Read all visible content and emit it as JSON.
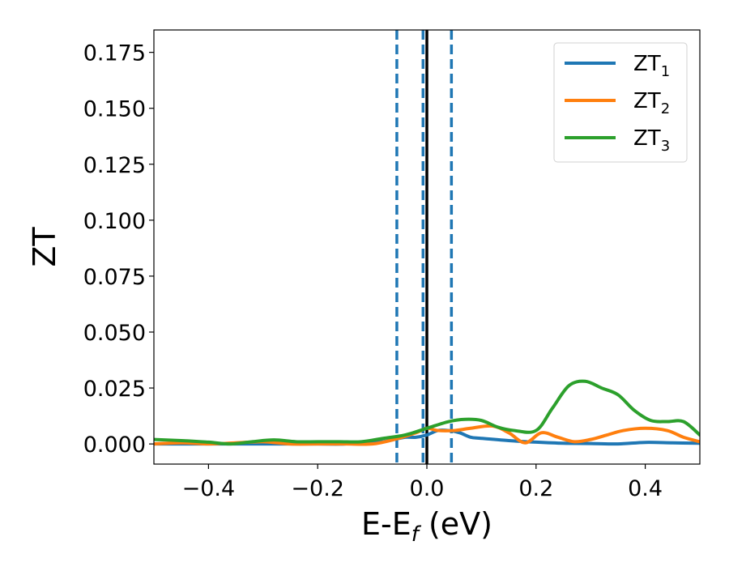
{
  "chart_data": {
    "type": "line",
    "title": "",
    "xlabel_main": "E-E",
    "xlabel_sub": "f",
    "xlabel_tail": " (eV)",
    "ylabel": "ZT",
    "xlim": [
      -0.5,
      0.5
    ],
    "ylim": [
      -0.009,
      0.185
    ],
    "xticks": [
      {
        "value": -0.4,
        "label": "−0.4"
      },
      {
        "value": -0.2,
        "label": "−0.2"
      },
      {
        "value": 0.0,
        "label": "0.0"
      },
      {
        "value": 0.2,
        "label": "0.2"
      },
      {
        "value": 0.4,
        "label": "0.4"
      }
    ],
    "yticks": [
      {
        "value": 0.0,
        "label": "0.000"
      },
      {
        "value": 0.025,
        "label": "0.025"
      },
      {
        "value": 0.05,
        "label": "0.050"
      },
      {
        "value": 0.075,
        "label": "0.075"
      },
      {
        "value": 0.1,
        "label": "0.100"
      },
      {
        "value": 0.125,
        "label": "0.125"
      },
      {
        "value": 0.15,
        "label": "0.150"
      },
      {
        "value": 0.175,
        "label": "0.175"
      }
    ],
    "grid": false,
    "legend_position": "top-right",
    "vlines": [
      {
        "x": -0.055,
        "style": "dashed",
        "color": "#1f77b4"
      },
      {
        "x": -0.007,
        "style": "dashed",
        "color": "#1f77b4"
      },
      {
        "x": 0.045,
        "style": "dashed",
        "color": "#1f77b4"
      },
      {
        "x": 0.0,
        "style": "solid",
        "color": "#000000"
      }
    ],
    "series": [
      {
        "name_main": "ZT",
        "name_sub": "1",
        "color": "#1f77b4",
        "x": [
          -0.5,
          -0.45,
          -0.4,
          -0.35,
          -0.3,
          -0.25,
          -0.2,
          -0.15,
          -0.1,
          -0.08,
          -0.06,
          -0.04,
          -0.02,
          0.0,
          0.02,
          0.04,
          0.06,
          0.08,
          0.1,
          0.15,
          0.2,
          0.25,
          0.3,
          0.35,
          0.4,
          0.45,
          0.5
        ],
        "y": [
          0.0,
          0.0,
          0.0,
          0.0,
          0.0,
          0.0,
          0.0,
          0.0,
          0.001,
          0.001,
          0.002,
          0.003,
          0.003,
          0.004,
          0.006,
          0.006,
          0.005,
          0.003,
          0.0025,
          0.0015,
          0.0008,
          0.0003,
          0.0002,
          0.0,
          0.0007,
          0.0005,
          0.0003
        ]
      },
      {
        "name_main": "ZT",
        "name_sub": "2",
        "color": "#ff7f0e",
        "x": [
          -0.5,
          -0.45,
          -0.4,
          -0.35,
          -0.3,
          -0.25,
          -0.2,
          -0.15,
          -0.1,
          -0.06,
          -0.02,
          0.0,
          0.02,
          0.05,
          0.08,
          0.12,
          0.15,
          0.18,
          0.21,
          0.24,
          0.27,
          0.3,
          0.33,
          0.36,
          0.4,
          0.44,
          0.47,
          0.5
        ],
        "y": [
          0.0,
          0.0005,
          0.0,
          0.0005,
          0.001,
          0.0,
          0.0,
          0.0,
          0.0,
          0.002,
          0.005,
          0.007,
          0.006,
          0.006,
          0.007,
          0.008,
          0.005,
          0.0005,
          0.005,
          0.003,
          0.001,
          0.002,
          0.004,
          0.006,
          0.007,
          0.006,
          0.003,
          0.001
        ]
      },
      {
        "name_main": "ZT",
        "name_sub": "3",
        "color": "#2ca02c",
        "x": [
          -0.5,
          -0.45,
          -0.4,
          -0.36,
          -0.32,
          -0.28,
          -0.24,
          -0.2,
          -0.16,
          -0.12,
          -0.08,
          -0.04,
          0.0,
          0.04,
          0.07,
          0.1,
          0.13,
          0.16,
          0.2,
          0.23,
          0.26,
          0.29,
          0.32,
          0.35,
          0.38,
          0.41,
          0.44,
          0.47,
          0.5
        ],
        "y": [
          0.002,
          0.0015,
          0.0008,
          0.0,
          0.001,
          0.0018,
          0.001,
          0.001,
          0.001,
          0.001,
          0.0025,
          0.004,
          0.007,
          0.01,
          0.011,
          0.0105,
          0.0075,
          0.006,
          0.006,
          0.016,
          0.026,
          0.028,
          0.025,
          0.022,
          0.015,
          0.0105,
          0.01,
          0.01,
          0.004
        ]
      }
    ]
  }
}
